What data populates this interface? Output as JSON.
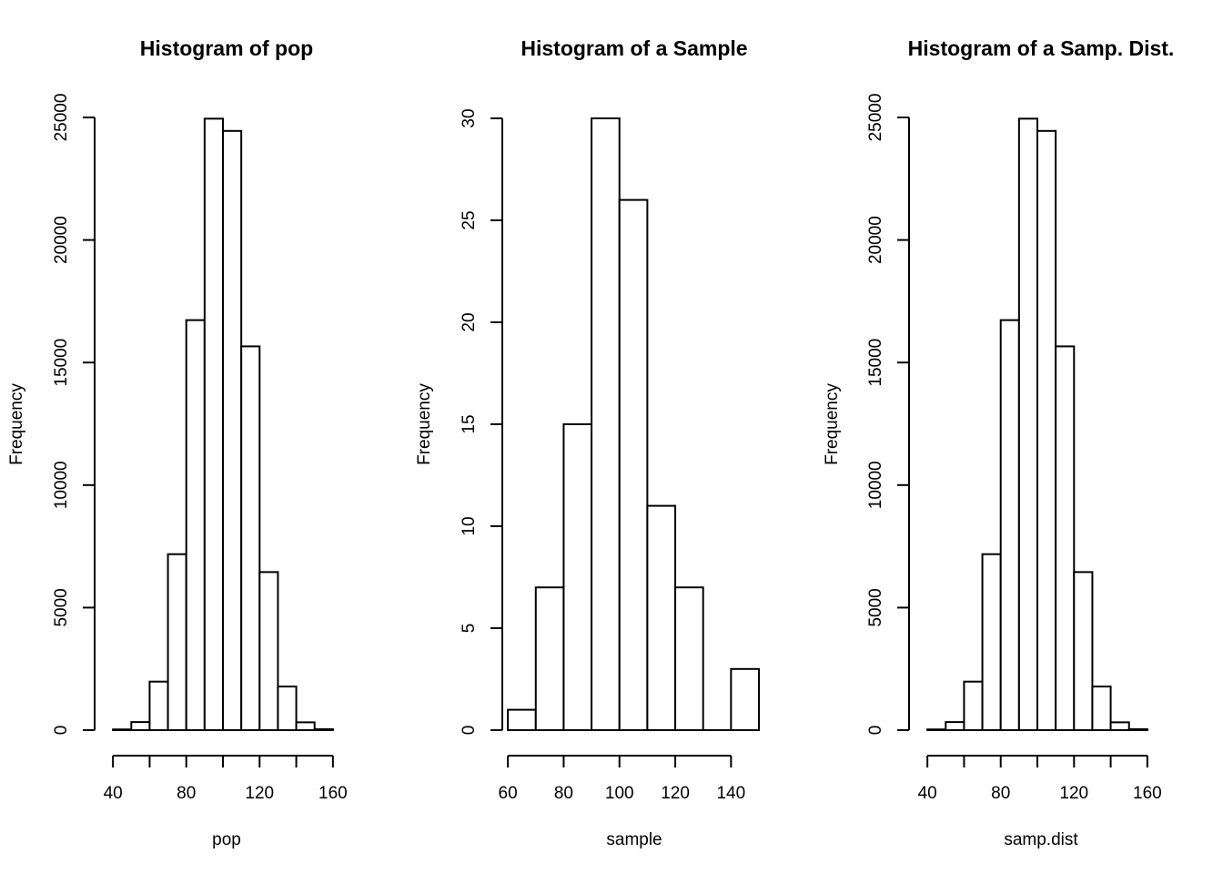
{
  "chart_data": [
    {
      "type": "bar",
      "title": "Histogram of pop",
      "xlabel": "pop",
      "ylabel": "Frequency",
      "xlim": [
        30,
        170
      ],
      "ylim": [
        0,
        25000
      ],
      "x_ticks": [
        40,
        60,
        80,
        100,
        120,
        140,
        160
      ],
      "x_tick_labels": [
        "40",
        "",
        "80",
        "",
        "120",
        "",
        "160"
      ],
      "y_ticks": [
        0,
        5000,
        10000,
        15000,
        20000,
        25000
      ],
      "y_tick_labels": [
        "0",
        "5000",
        "10000",
        "15000",
        "20000",
        "25000"
      ],
      "bins": [
        [
          40,
          50
        ],
        [
          50,
          60
        ],
        [
          60,
          70
        ],
        [
          70,
          80
        ],
        [
          80,
          90
        ],
        [
          90,
          100
        ],
        [
          100,
          110
        ],
        [
          110,
          120
        ],
        [
          120,
          130
        ],
        [
          130,
          140
        ],
        [
          140,
          150
        ],
        [
          150,
          160
        ]
      ],
      "values": [
        30,
        330,
        1980,
        7180,
        16730,
        24950,
        24450,
        15660,
        6450,
        1780,
        320,
        40
      ],
      "grid": false,
      "bar_fill": "#ffffff",
      "bar_stroke": "#000000"
    },
    {
      "type": "bar",
      "title": "Histogram of a Sample",
      "xlabel": "sample",
      "ylabel": "Frequency",
      "xlim": [
        58,
        150
      ],
      "ylim": [
        0,
        30
      ],
      "x_ticks": [
        60,
        80,
        100,
        120,
        140
      ],
      "x_tick_labels": [
        "60",
        "80",
        "100",
        "120",
        "140"
      ],
      "y_ticks": [
        0,
        5,
        10,
        15,
        20,
        25,
        30
      ],
      "y_tick_labels": [
        "0",
        "5",
        "10",
        "15",
        "20",
        "25",
        "30"
      ],
      "bins": [
        [
          60,
          70
        ],
        [
          70,
          80
        ],
        [
          80,
          90
        ],
        [
          90,
          100
        ],
        [
          100,
          110
        ],
        [
          110,
          120
        ],
        [
          120,
          130
        ],
        [
          130,
          140
        ],
        [
          140,
          150
        ]
      ],
      "values": [
        1,
        7,
        15,
        30,
        26,
        11,
        7,
        0,
        3
      ],
      "grid": false,
      "bar_fill": "#ffffff",
      "bar_stroke": "#000000"
    },
    {
      "type": "bar",
      "title": "Histogram of a Samp. Dist.",
      "xlabel": "samp.dist",
      "ylabel": "Frequency",
      "xlim": [
        30,
        170
      ],
      "ylim": [
        0,
        25000
      ],
      "x_ticks": [
        40,
        60,
        80,
        100,
        120,
        140,
        160
      ],
      "x_tick_labels": [
        "40",
        "",
        "80",
        "",
        "120",
        "",
        "160"
      ],
      "y_ticks": [
        0,
        5000,
        10000,
        15000,
        20000,
        25000
      ],
      "y_tick_labels": [
        "0",
        "5000",
        "10000",
        "15000",
        "20000",
        "25000"
      ],
      "bins": [
        [
          40,
          50
        ],
        [
          50,
          60
        ],
        [
          60,
          70
        ],
        [
          70,
          80
        ],
        [
          80,
          90
        ],
        [
          90,
          100
        ],
        [
          100,
          110
        ],
        [
          110,
          120
        ],
        [
          120,
          130
        ],
        [
          130,
          140
        ],
        [
          140,
          150
        ],
        [
          150,
          160
        ]
      ],
      "values": [
        30,
        330,
        1980,
        7180,
        16730,
        24950,
        24450,
        15660,
        6450,
        1780,
        320,
        40
      ],
      "grid": false,
      "bar_fill": "#ffffff",
      "bar_stroke": "#000000"
    }
  ]
}
